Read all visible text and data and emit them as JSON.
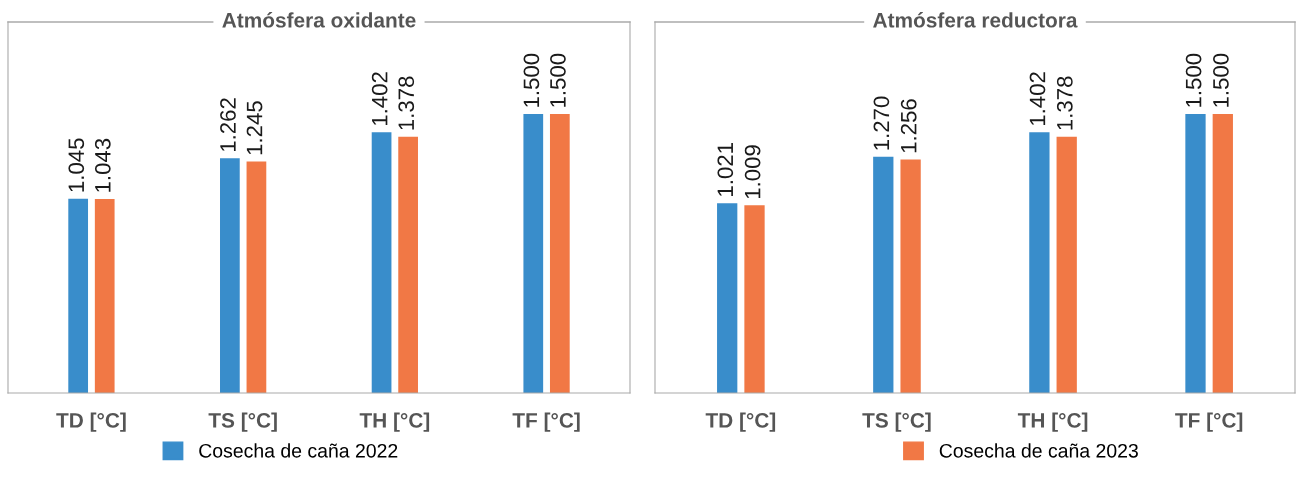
{
  "chart_data": [
    {
      "type": "bar",
      "title": "Atmósfera oxidante",
      "categories": [
        "TD [°C]",
        "TS [°C]",
        "TH [°C]",
        "TF [°C]"
      ],
      "legend": "bottom",
      "series": [
        {
          "name": "Cosecha de caña 2022",
          "color": "#398dcb",
          "values": [
            1045,
            1262,
            1402,
            1500
          ],
          "value_labels": [
            "1.045",
            "1.262",
            "1.402",
            "1.500"
          ]
        },
        {
          "name": "Cosecha de caña 2023",
          "color": "#f17845",
          "values": [
            1043,
            1245,
            1378,
            1500
          ],
          "value_labels": [
            "1.043",
            "1.245",
            "1.378",
            "1.500"
          ]
        }
      ]
    },
    {
      "type": "bar",
      "title": "Atmósfera reductora",
      "categories": [
        "TD [°C]",
        "TS [°C]",
        "TH [°C]",
        "TF [°C]"
      ],
      "series": [
        {
          "color": "#398dcb",
          "values": [
            1021,
            1270,
            1402,
            1500
          ],
          "value_labels": [
            "1.021",
            "1.270",
            "1.402",
            "1.500"
          ]
        },
        {
          "color": "#f17845",
          "values": [
            1009,
            1256,
            1378,
            1500
          ],
          "value_labels": [
            "1.009",
            "1.256",
            "1.378",
            "1.500"
          ]
        }
      ]
    }
  ]
}
